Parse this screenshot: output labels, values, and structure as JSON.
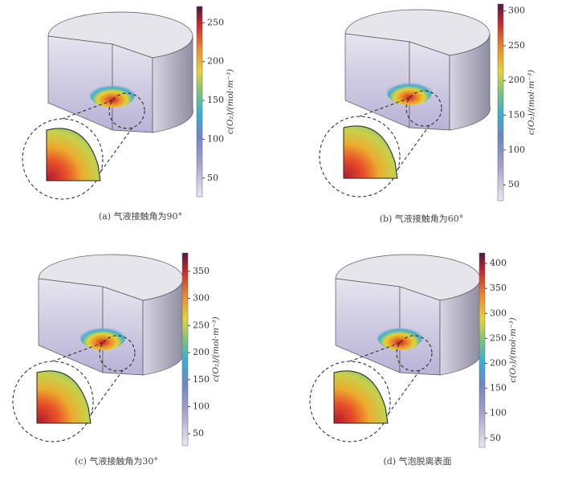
{
  "panels": [
    {
      "caption": "(a) 气液接触角为90°",
      "colorbar": {
        "label": "c(O₂)/(mol·m⁻³)",
        "lim": [
          26,
          271
        ],
        "ticks": [
          50,
          100,
          150,
          200,
          250
        ]
      }
    },
    {
      "caption": "(b) 气液接触角为60°",
      "colorbar": {
        "label": "c(O₂)/(mol·m⁻³)",
        "lim": [
          27,
          310
        ],
        "ticks": [
          50,
          100,
          150,
          200,
          250,
          300
        ]
      }
    },
    {
      "caption": "(c) 气液接触角为30°",
      "colorbar": {
        "label": "c(O₂)/(mol·m⁻³)",
        "lim": [
          28,
          384
        ],
        "ticks": [
          50,
          100,
          150,
          200,
          250,
          300,
          350
        ]
      }
    },
    {
      "caption": "(d) 气泡脱离表面",
      "colorbar": {
        "label": "c(O₂)/(mol·m⁻³)",
        "lim": [
          32,
          421
        ],
        "ticks": [
          50,
          100,
          150,
          200,
          250,
          300,
          350,
          400
        ]
      }
    }
  ]
}
